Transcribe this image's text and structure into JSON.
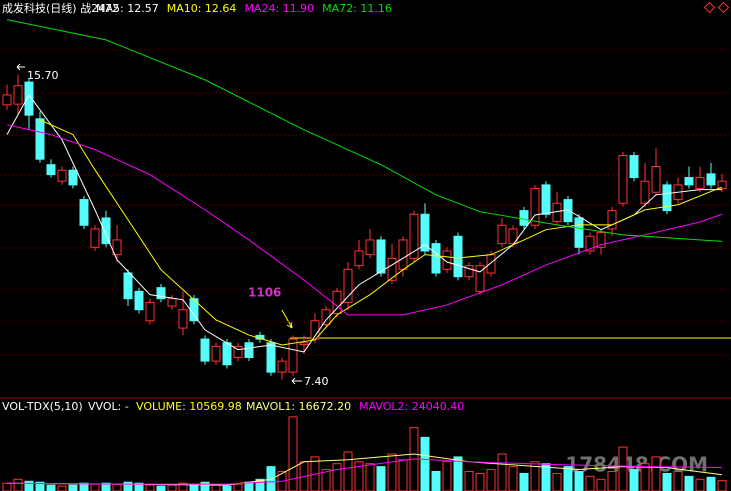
{
  "chart_data": [
    {
      "type": "candlestick",
      "title": "成发科技(日线) 战2472",
      "up_color": "#ff3232",
      "down_color": "#54fcfc",
      "open": [
        14.88,
        14.9,
        15.5,
        14.5,
        13.25,
        12.8,
        13.1,
        12.3,
        11.0,
        11.8,
        10.8,
        10.3,
        9.8,
        9.0,
        9.9,
        9.4,
        8.8,
        9.6,
        8.5,
        7.9,
        8.4,
        8.0,
        8.4,
        8.6,
        8.4,
        7.6,
        7.6,
        8.35,
        8.5,
        8.9,
        9.2,
        9.5,
        10.5,
        10.8,
        11.2,
        10.1,
        10.4,
        10.7,
        11.9,
        11.1,
        10.4,
        11.3,
        10.2,
        9.8,
        10.3,
        11.1,
        11.1,
        12.0,
        11.6,
        12.7,
        11.7,
        12.3,
        11.8,
        10.9,
        11.0,
        11.5,
        12.2,
        13.5,
        12.2,
        12.5,
        12.7,
        12.3,
        12.9,
        12.6,
        13.0,
        12.6
      ],
      "close": [
        15.15,
        15.4,
        14.6,
        13.4,
        12.98,
        13.1,
        12.7,
        11.6,
        11.5,
        11.1,
        11.2,
        9.6,
        9.3,
        9.5,
        9.6,
        9.6,
        9.3,
        9.0,
        7.9,
        8.3,
        7.8,
        8.3,
        8.0,
        8.5,
        7.6,
        7.9,
        8.5,
        8.4,
        9.0,
        9.3,
        9.8,
        10.4,
        10.9,
        11.2,
        10.3,
        10.7,
        11.2,
        11.9,
        10.9,
        10.3,
        10.9,
        10.2,
        10.5,
        10.5,
        10.8,
        11.6,
        11.5,
        11.6,
        12.6,
        11.9,
        12.2,
        11.7,
        11.0,
        11.3,
        11.4,
        12.0,
        13.5,
        12.9,
        12.8,
        13.2,
        12.0,
        12.7,
        12.7,
        12.9,
        12.7,
        12.8
      ],
      "high": [
        15.43,
        15.7,
        15.6,
        14.7,
        13.4,
        13.2,
        13.2,
        12.4,
        11.6,
        12.0,
        11.6,
        10.4,
        9.9,
        9.6,
        10.0,
        9.7,
        9.8,
        9.7,
        8.6,
        8.4,
        8.5,
        8.4,
        8.5,
        8.7,
        8.5,
        8.0,
        8.6,
        8.6,
        9.2,
        9.4,
        9.9,
        10.6,
        11.2,
        11.5,
        11.3,
        11.1,
        11.3,
        12.0,
        12.2,
        11.2,
        11.0,
        11.4,
        10.6,
        10.6,
        10.9,
        11.8,
        11.6,
        12.1,
        12.7,
        12.8,
        12.5,
        12.4,
        11.9,
        11.4,
        11.5,
        12.1,
        13.6,
        13.6,
        13.3,
        13.7,
        12.8,
        12.9,
        13.2,
        13.2,
        13.3,
        13.0
      ],
      "low": [
        14.74,
        14.6,
        14.2,
        13.3,
        12.9,
        12.7,
        12.6,
        11.5,
        10.9,
        11.0,
        10.6,
        9.4,
        9.2,
        8.9,
        9.5,
        9.3,
        8.6,
        8.9,
        7.8,
        7.8,
        7.7,
        7.9,
        7.9,
        8.4,
        7.5,
        7.4,
        7.5,
        8.1,
        8.4,
        8.8,
        9.1,
        9.3,
        10.4,
        10.7,
        10.2,
        10.0,
        10.2,
        10.6,
        10.8,
        10.2,
        10.3,
        10.1,
        10.1,
        9.7,
        10.2,
        11.0,
        11.0,
        11.5,
        11.5,
        11.8,
        11.6,
        11.6,
        10.8,
        10.8,
        10.8,
        11.3,
        12.1,
        12.8,
        12.1,
        12.4,
        11.9,
        12.2,
        12.6,
        12.5,
        12.6,
        12.5
      ],
      "ylim": [
        6.95,
        17.3
      ],
      "series": [
        {
          "name": "MA5: 12.57",
          "color": "#ffffff",
          "x": [
            0,
            2,
            5,
            8,
            10,
            13,
            16,
            18,
            21,
            24,
            27,
            29,
            32,
            35,
            38,
            40,
            43,
            46,
            48,
            51,
            54,
            57,
            59,
            63,
            65
          ],
          "values": [
            14.07,
            15.15,
            13.93,
            12.02,
            10.66,
            9.71,
            9.57,
            8.75,
            8.21,
            8.34,
            8.15,
            9.02,
            9.98,
            10.52,
            11.07,
            10.6,
            10.33,
            11.07,
            11.88,
            12.02,
            11.48,
            11.88,
            12.43,
            12.57,
            12.57
          ]
        },
        {
          "name": "MA10: 12.64",
          "color": "#ffff00",
          "x": [
            3,
            6,
            8,
            11,
            14,
            17,
            19,
            22,
            25,
            28,
            30,
            33,
            36,
            38,
            41,
            44,
            47,
            49,
            52,
            55,
            58,
            61,
            65
          ],
          "values": [
            14.47,
            14.07,
            13.11,
            11.75,
            10.39,
            9.57,
            9.02,
            8.61,
            8.34,
            8.48,
            9.16,
            9.71,
            10.39,
            10.8,
            10.71,
            10.8,
            11.2,
            11.48,
            11.61,
            11.61,
            12.02,
            12.16,
            12.64
          ]
        },
        {
          "name": "MA24: 11.90",
          "color": "#ff00ff",
          "x": [
            0,
            4,
            8,
            13,
            18,
            22,
            27,
            31,
            36,
            40,
            45,
            49,
            54,
            58,
            63,
            65
          ],
          "values": [
            14.34,
            14.07,
            13.66,
            12.98,
            12.02,
            11.2,
            10.11,
            9.16,
            9.16,
            9.43,
            9.98,
            10.52,
            11.07,
            11.34,
            11.69,
            11.9
          ]
        },
        {
          "name": "MA72: 11.16",
          "color": "#00e000",
          "x": [
            0,
            9,
            18,
            27,
            34,
            39,
            43,
            50,
            56,
            65
          ],
          "values": [
            17.2,
            16.65,
            15.56,
            14.2,
            13.25,
            12.43,
            11.97,
            11.61,
            11.34,
            11.16
          ]
        }
      ],
      "reference_line": {
        "value": 8.53,
        "color": "#ffff00"
      },
      "annotations": [
        "15.70",
        "7.40",
        "1106"
      ]
    },
    {
      "type": "bar",
      "title": "VOL-TDX(5,10)",
      "subtitle": "VVOL: -",
      "label": "VOLUME: 10569.98",
      "values": [
        8000,
        12000,
        10000,
        9000,
        6000,
        5000,
        6000,
        8000,
        7000,
        8000,
        7000,
        9000,
        8000,
        6000,
        5000,
        6000,
        8000,
        7000,
        9000,
        6000,
        5000,
        7000,
        9000,
        12000,
        25000,
        20000,
        76000,
        30000,
        35000,
        22000,
        28000,
        40000,
        30000,
        28000,
        25000,
        38000,
        32000,
        65000,
        55000,
        20000,
        30000,
        35000,
        20000,
        18000,
        22000,
        38000,
        25000,
        18000,
        30000,
        28000,
        18000,
        25000,
        20000,
        15000,
        12000,
        20000,
        45000,
        22000,
        28000,
        35000,
        18000,
        20000,
        15000,
        12000,
        14000,
        10569.98
      ],
      "ylim": [
        0,
        80000
      ],
      "series": [
        {
          "name": "MAVOL1: 16672.20",
          "color": "#ffff80",
          "x": [
            0,
            10,
            20,
            24,
            27,
            31,
            37,
            42,
            47,
            52,
            56,
            60,
            65
          ],
          "values": [
            8000,
            7000,
            6000,
            12000,
            30000,
            32000,
            38000,
            30000,
            26000,
            22000,
            25000,
            24000,
            16672.2
          ]
        },
        {
          "name": "MAVOL2: 24040.40",
          "color": "#ff00ff",
          "x": [
            0,
            10,
            20,
            25,
            30,
            37,
            42,
            50,
            58,
            65
          ],
          "values": [
            8000,
            7000,
            7000,
            10000,
            22000,
            33000,
            30000,
            27000,
            25000,
            24040.4
          ]
        }
      ]
    }
  ],
  "watermark": "178448.COM"
}
